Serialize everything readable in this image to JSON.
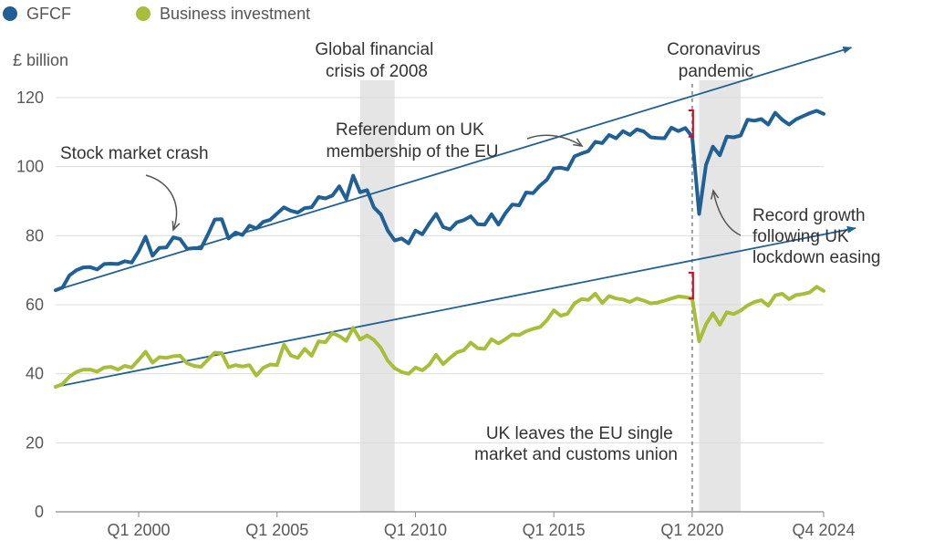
{
  "chart_data": {
    "type": "line",
    "unit_label": "£ billion",
    "ylim": [
      0,
      120
    ],
    "y_ticks": [
      0,
      20,
      40,
      60,
      80,
      100,
      120
    ],
    "x_range": [
      1997.0,
      2024.75
    ],
    "x_ticks": [
      {
        "label": "Q1 2000",
        "x": 2000.0
      },
      {
        "label": "Q1 2005",
        "x": 2005.0
      },
      {
        "label": "Q1 2010",
        "x": 2010.0
      },
      {
        "label": "Q1 2015",
        "x": 2015.0
      },
      {
        "label": "Q1 2020",
        "x": 2020.0
      },
      {
        "label": "Q4 2024",
        "x": 2024.75
      }
    ],
    "grid": true,
    "legend_position": "top-left",
    "series": [
      {
        "name": "GFCF",
        "color": "#206095",
        "points": [
          [
            1997.0,
            64.2
          ],
          [
            1997.25,
            65
          ],
          [
            1997.5,
            68.5
          ],
          [
            1997.75,
            70
          ],
          [
            1998.0,
            70.8
          ],
          [
            1998.25,
            70.9
          ],
          [
            1998.5,
            70.2
          ],
          [
            1998.75,
            71.8
          ],
          [
            1999.0,
            71.9
          ],
          [
            1999.25,
            71.8
          ],
          [
            1999.5,
            72.6
          ],
          [
            1999.75,
            72.2
          ],
          [
            2000.0,
            75.5
          ],
          [
            2000.25,
            79.7
          ],
          [
            2000.5,
            74.2
          ],
          [
            2000.75,
            76.5
          ],
          [
            2001.0,
            76.6
          ],
          [
            2001.25,
            79.5
          ],
          [
            2001.5,
            79
          ],
          [
            2001.75,
            76.2
          ],
          [
            2002.0,
            76.4
          ],
          [
            2002.25,
            76.3
          ],
          [
            2002.5,
            80.3
          ],
          [
            2002.75,
            84.7
          ],
          [
            2003.0,
            84.8
          ],
          [
            2003.25,
            79.2
          ],
          [
            2003.5,
            80.9
          ],
          [
            2003.75,
            80.2
          ],
          [
            2004.0,
            82.9
          ],
          [
            2004.25,
            82.1
          ],
          [
            2004.5,
            84
          ],
          [
            2004.75,
            84.6
          ],
          [
            2005.0,
            86.4
          ],
          [
            2005.25,
            88.2
          ],
          [
            2005.5,
            87.2
          ],
          [
            2005.75,
            86.7
          ],
          [
            2006.0,
            88
          ],
          [
            2006.25,
            88.2
          ],
          [
            2006.5,
            91.2
          ],
          [
            2006.75,
            90.8
          ],
          [
            2007.0,
            91.6
          ],
          [
            2007.25,
            94.3
          ],
          [
            2007.5,
            90.6
          ],
          [
            2007.75,
            97.4
          ],
          [
            2008.0,
            92.6
          ],
          [
            2008.25,
            93.2
          ],
          [
            2008.5,
            88.2
          ],
          [
            2008.75,
            86.2
          ],
          [
            2009.0,
            81.5
          ],
          [
            2009.25,
            78.6
          ],
          [
            2009.5,
            79.2
          ],
          [
            2009.75,
            77.8
          ],
          [
            2010.0,
            81.5
          ],
          [
            2010.25,
            80.4
          ],
          [
            2010.5,
            83.5
          ],
          [
            2010.75,
            86.3
          ],
          [
            2011.0,
            82.5
          ],
          [
            2011.25,
            81.8
          ],
          [
            2011.5,
            83.9
          ],
          [
            2011.75,
            84.5
          ],
          [
            2012.0,
            85.6
          ],
          [
            2012.25,
            83.3
          ],
          [
            2012.5,
            83.2
          ],
          [
            2012.75,
            86.2
          ],
          [
            2013.0,
            83.2
          ],
          [
            2013.25,
            86.5
          ],
          [
            2013.5,
            89
          ],
          [
            2013.75,
            88.8
          ],
          [
            2014.0,
            92.5
          ],
          [
            2014.25,
            92.3
          ],
          [
            2014.5,
            94.5
          ],
          [
            2014.75,
            96.2
          ],
          [
            2015.0,
            99.5
          ],
          [
            2015.25,
            99.7
          ],
          [
            2015.5,
            99.2
          ],
          [
            2015.75,
            103
          ],
          [
            2016.0,
            103.8
          ],
          [
            2016.25,
            104.5
          ],
          [
            2016.5,
            107.2
          ],
          [
            2016.75,
            106.8
          ],
          [
            2017.0,
            109.2
          ],
          [
            2017.25,
            108.2
          ],
          [
            2017.5,
            110.3
          ],
          [
            2017.75,
            109.2
          ],
          [
            2018.0,
            110.8
          ],
          [
            2018.25,
            110.2
          ],
          [
            2018.5,
            108.5
          ],
          [
            2018.75,
            108.3
          ],
          [
            2019.0,
            108.2
          ],
          [
            2019.25,
            111.3
          ],
          [
            2019.5,
            110.3
          ],
          [
            2019.75,
            111.2
          ],
          [
            2020.0,
            108.7
          ],
          [
            2020.25,
            86.3
          ],
          [
            2020.5,
            100.5
          ],
          [
            2020.75,
            105.8
          ],
          [
            2021.0,
            103.3
          ],
          [
            2021.25,
            108.7
          ],
          [
            2021.5,
            108.5
          ],
          [
            2021.75,
            109
          ],
          [
            2022.0,
            113.6
          ],
          [
            2022.25,
            113.3
          ],
          [
            2022.5,
            113.8
          ],
          [
            2022.75,
            112.2
          ],
          [
            2023.0,
            115.6
          ],
          [
            2023.25,
            113.6
          ],
          [
            2023.5,
            112.2
          ],
          [
            2023.75,
            113.7
          ],
          [
            2024.0,
            114.6
          ],
          [
            2024.25,
            115.5
          ],
          [
            2024.5,
            116.2
          ],
          [
            2024.75,
            115.3
          ]
        ]
      },
      {
        "name": "Business investment",
        "color": "#a8bd3a",
        "points": [
          [
            1997.0,
            36.2
          ],
          [
            1997.25,
            37
          ],
          [
            1997.5,
            39.2
          ],
          [
            1997.75,
            40.5
          ],
          [
            1998.0,
            41.2
          ],
          [
            1998.25,
            41.2
          ],
          [
            1998.5,
            40.6
          ],
          [
            1998.75,
            41.8
          ],
          [
            1999.0,
            42
          ],
          [
            1999.25,
            41.2
          ],
          [
            1999.5,
            42.3
          ],
          [
            1999.75,
            41.8
          ],
          [
            2000.0,
            44
          ],
          [
            2000.25,
            46.4
          ],
          [
            2000.5,
            43.2
          ],
          [
            2000.75,
            44.8
          ],
          [
            2001.0,
            44.6
          ],
          [
            2001.25,
            45.1
          ],
          [
            2001.5,
            45.2
          ],
          [
            2001.75,
            43
          ],
          [
            2002.0,
            42.3
          ],
          [
            2002.25,
            42
          ],
          [
            2002.5,
            44.1
          ],
          [
            2002.75,
            46.1
          ],
          [
            2003.0,
            46
          ],
          [
            2003.25,
            41.9
          ],
          [
            2003.5,
            42.5
          ],
          [
            2003.75,
            42.1
          ],
          [
            2004.0,
            42.5
          ],
          [
            2004.25,
            39.5
          ],
          [
            2004.5,
            41.7
          ],
          [
            2004.75,
            42.7
          ],
          [
            2005.0,
            42.5
          ],
          [
            2005.25,
            48.4
          ],
          [
            2005.5,
            45.3
          ],
          [
            2005.75,
            44.6
          ],
          [
            2006.0,
            47.2
          ],
          [
            2006.25,
            45.2
          ],
          [
            2006.5,
            49.4
          ],
          [
            2006.75,
            49.1
          ],
          [
            2007.0,
            51.8
          ],
          [
            2007.25,
            50.9
          ],
          [
            2007.5,
            49.5
          ],
          [
            2007.75,
            53.3
          ],
          [
            2008.0,
            49.9
          ],
          [
            2008.25,
            51.1
          ],
          [
            2008.5,
            49.8
          ],
          [
            2008.75,
            47.5
          ],
          [
            2009.0,
            43.8
          ],
          [
            2009.25,
            41.6
          ],
          [
            2009.5,
            40.5
          ],
          [
            2009.75,
            40
          ],
          [
            2010.0,
            41.8
          ],
          [
            2010.25,
            41
          ],
          [
            2010.5,
            42.6
          ],
          [
            2010.75,
            45.5
          ],
          [
            2011.0,
            42.8
          ],
          [
            2011.25,
            44.6
          ],
          [
            2011.5,
            46.2
          ],
          [
            2011.75,
            46.8
          ],
          [
            2012.0,
            49
          ],
          [
            2012.25,
            47.4
          ],
          [
            2012.5,
            47.2
          ],
          [
            2012.75,
            50
          ],
          [
            2013.0,
            48.8
          ],
          [
            2013.25,
            50
          ],
          [
            2013.5,
            51.4
          ],
          [
            2013.75,
            51.2
          ],
          [
            2014.0,
            52.3
          ],
          [
            2014.25,
            53
          ],
          [
            2014.5,
            53.5
          ],
          [
            2014.75,
            55.5
          ],
          [
            2015.0,
            58.4
          ],
          [
            2015.25,
            56.8
          ],
          [
            2015.5,
            57.4
          ],
          [
            2015.75,
            60.4
          ],
          [
            2016.0,
            61.6
          ],
          [
            2016.25,
            61.4
          ],
          [
            2016.5,
            63.2
          ],
          [
            2016.75,
            60.5
          ],
          [
            2017.0,
            62.5
          ],
          [
            2017.25,
            61.8
          ],
          [
            2017.5,
            61.5
          ],
          [
            2017.75,
            60.8
          ],
          [
            2018.0,
            61.8
          ],
          [
            2018.25,
            61.2
          ],
          [
            2018.5,
            60.4
          ],
          [
            2018.75,
            60.6
          ],
          [
            2019.0,
            61.2
          ],
          [
            2019.25,
            61.8
          ],
          [
            2019.5,
            62.4
          ],
          [
            2019.75,
            62.2
          ],
          [
            2020.0,
            61.8
          ],
          [
            2020.25,
            49.4
          ],
          [
            2020.5,
            54.3
          ],
          [
            2020.75,
            57.5
          ],
          [
            2021.0,
            54.2
          ],
          [
            2021.25,
            57.8
          ],
          [
            2021.5,
            57.3
          ],
          [
            2021.75,
            58.3
          ],
          [
            2022.0,
            59.8
          ],
          [
            2022.25,
            60.8
          ],
          [
            2022.5,
            61.3
          ],
          [
            2022.75,
            59.7
          ],
          [
            2023.0,
            62.7
          ],
          [
            2023.25,
            63.2
          ],
          [
            2023.5,
            61.6
          ],
          [
            2023.75,
            62.8
          ],
          [
            2024.0,
            63.1
          ],
          [
            2024.25,
            63.6
          ],
          [
            2024.5,
            65.2
          ],
          [
            2024.75,
            64
          ]
        ]
      }
    ],
    "trend_lines": [
      {
        "name": "gfcf-trend",
        "from": [
          1997.0,
          64.2
        ],
        "to": [
          2025.75,
          134.5
        ]
      },
      {
        "name": "business-investment-trend",
        "from": [
          1997.0,
          36.2
        ],
        "to": [
          2025.9,
          82.2
        ]
      }
    ],
    "shaded_periods": [
      {
        "name": "financial-crisis",
        "from": 2008.0,
        "to": 2009.25
      },
      {
        "name": "coronavirus",
        "from": 2020.25,
        "to": 2021.75
      }
    ],
    "vertical_markers": [
      {
        "name": "brexit-exit-marker",
        "x": 2020.0,
        "from_y": 0,
        "to_y": 124
      }
    ],
    "gap_brackets": [
      {
        "name": "gfcf-gap-bracket",
        "x": 2020.0,
        "y_low": 108.7,
        "y_high": 116.3
      },
      {
        "name": "business-investment-gap-bracket",
        "x": 2020.0,
        "y_low": 61.8,
        "y_high": 69.3
      }
    ],
    "annotations": [
      {
        "name": "annotation-financial-crisis",
        "lines": [
          "Global financial",
          "crisis of 2008"
        ]
      },
      {
        "name": "annotation-coronavirus",
        "lines": [
          "Coronavirus",
          "pandemic"
        ]
      },
      {
        "name": "annotation-referendum",
        "lines": [
          "Referendum on UK",
          "membership of the EU"
        ]
      },
      {
        "name": "annotation-stock-crash",
        "lines": [
          "Stock market crash"
        ]
      },
      {
        "name": "annotation-record-growth",
        "lines": [
          "Record growth",
          "following UK",
          "lockdown easing"
        ]
      },
      {
        "name": "annotation-uk-leaves",
        "lines": [
          "UK leaves the EU single",
          "market and customs union"
        ]
      }
    ]
  }
}
